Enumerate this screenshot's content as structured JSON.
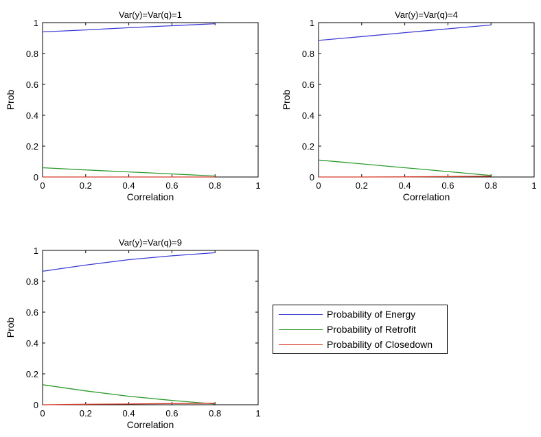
{
  "chart_data": [
    {
      "type": "line",
      "title": "Var(y)=Var(q)=1",
      "xlabel": "Correlation",
      "ylabel": "Prob",
      "xlim": [
        0,
        1
      ],
      "ylim": [
        0,
        1
      ],
      "xticks": [
        "0",
        "0.2",
        "0.4",
        "0.6",
        "0.8",
        "1"
      ],
      "yticks": [
        "0",
        "0.2",
        "0.4",
        "0.6",
        "0.8",
        "1"
      ],
      "series": [
        {
          "name": "Probability of Energy",
          "color": "#3b3bd6",
          "x": [
            0,
            0.2,
            0.4,
            0.6,
            0.8
          ],
          "y": [
            0.94,
            0.953,
            0.967,
            0.98,
            0.993
          ]
        },
        {
          "name": "Probability of Retrofit",
          "color": "#2e9a2e",
          "x": [
            0,
            0.2,
            0.4,
            0.6,
            0.8
          ],
          "y": [
            0.06,
            0.046,
            0.033,
            0.02,
            0.006
          ]
        },
        {
          "name": "Probability of Closedown",
          "color": "#d63b2a",
          "x": [
            0,
            0.2,
            0.4,
            0.6,
            0.8
          ],
          "y": [
            0.0,
            0.0,
            0.0,
            0.0,
            0.0
          ]
        }
      ]
    },
    {
      "type": "line",
      "title": "Var(y)=Var(q)=4",
      "xlabel": "Correlation",
      "ylabel": "Prob",
      "xlim": [
        0,
        1
      ],
      "ylim": [
        0,
        1
      ],
      "xticks": [
        "0",
        "0.2",
        "0.4",
        "0.6",
        "0.8",
        "1"
      ],
      "yticks": [
        "0",
        "0.2",
        "0.4",
        "0.6",
        "0.8",
        "1"
      ],
      "series": [
        {
          "name": "Probability of Energy",
          "color": "#3b3bd6",
          "x": [
            0,
            0.2,
            0.4,
            0.6,
            0.8
          ],
          "y": [
            0.885,
            0.91,
            0.935,
            0.96,
            0.985
          ]
        },
        {
          "name": "Probability of Retrofit",
          "color": "#2e9a2e",
          "x": [
            0,
            0.2,
            0.4,
            0.6,
            0.8
          ],
          "y": [
            0.11,
            0.085,
            0.06,
            0.035,
            0.01
          ]
        },
        {
          "name": "Probability of Closedown",
          "color": "#d63b2a",
          "x": [
            0,
            0.2,
            0.4,
            0.6,
            0.8
          ],
          "y": [
            0.0,
            0.0,
            0.001,
            0.003,
            0.005
          ]
        }
      ]
    },
    {
      "type": "line",
      "title": "Var(y)=Var(q)=9",
      "xlabel": "Correlation",
      "ylabel": "Prob",
      "xlim": [
        0,
        1
      ],
      "ylim": [
        0,
        1
      ],
      "xticks": [
        "0",
        "0.2",
        "0.4",
        "0.6",
        "0.8",
        "1"
      ],
      "yticks": [
        "0",
        "0.2",
        "0.4",
        "0.6",
        "0.8",
        "1"
      ],
      "series": [
        {
          "name": "Probability of Energy",
          "color": "#3b3bd6",
          "x": [
            0,
            0.2,
            0.4,
            0.6,
            0.8
          ],
          "y": [
            0.865,
            0.905,
            0.94,
            0.965,
            0.985
          ]
        },
        {
          "name": "Probability of Retrofit",
          "color": "#2e9a2e",
          "x": [
            0,
            0.2,
            0.4,
            0.6,
            0.8
          ],
          "y": [
            0.13,
            0.09,
            0.055,
            0.028,
            0.005
          ]
        },
        {
          "name": "Probability of Closedown",
          "color": "#d63b2a",
          "x": [
            0,
            0.2,
            0.4,
            0.6,
            0.8
          ],
          "y": [
            0.0,
            0.003,
            0.005,
            0.008,
            0.01
          ]
        }
      ]
    }
  ],
  "legend": {
    "placement": "right of bottom-left panel",
    "items": [
      {
        "label": "Probability of Energy",
        "color": "#3b3bd6"
      },
      {
        "label": "Probability of Retrofit",
        "color": "#2e9a2e"
      },
      {
        "label": "Probability of Closedown",
        "color": "#d63b2a"
      }
    ]
  }
}
